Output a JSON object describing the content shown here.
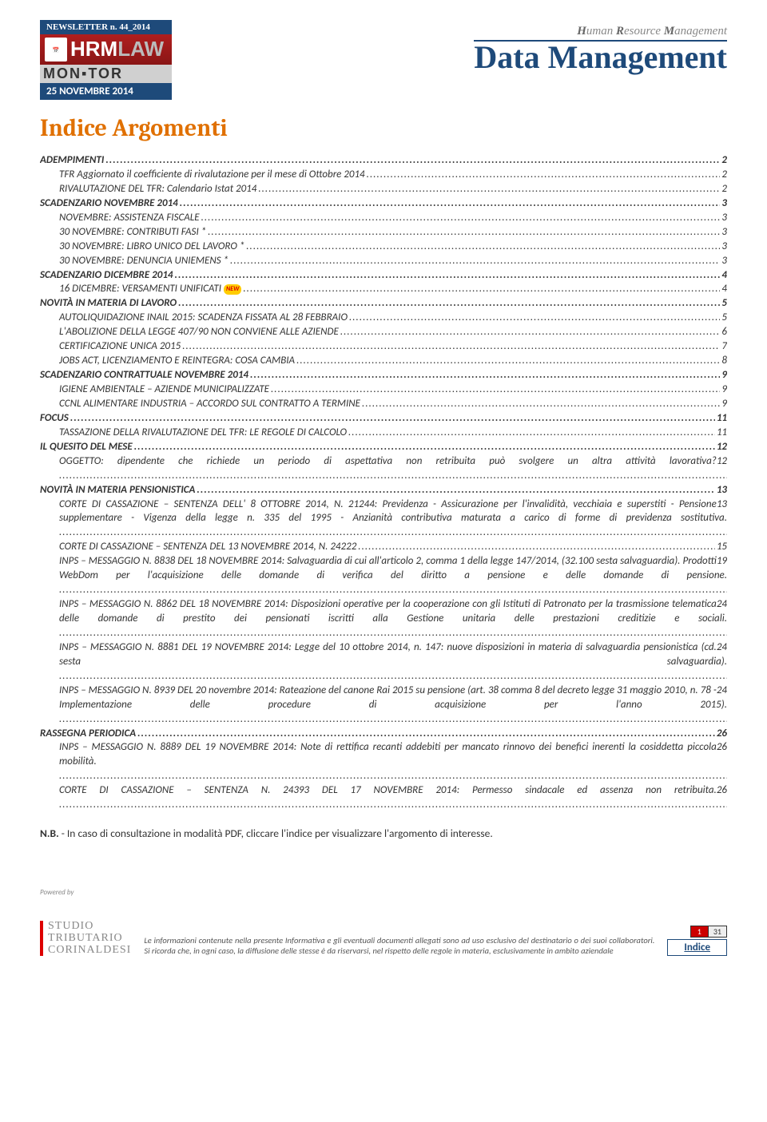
{
  "header": {
    "newsletter_label": "NEWSLETTER n. 44_2014",
    "hrm_line1_a": "HRM",
    "hrm_line1_b": "LAW",
    "monitor": "MON▪TOR",
    "date_bar": "25 NOVEMBRE 2014",
    "right_tag_html": "Human Resource Management",
    "dm_logo": "Data Management"
  },
  "title": "Indice Argomenti",
  "toc": [
    {
      "lvl": 0,
      "label": "ADEMPIMENTI",
      "page": "2"
    },
    {
      "lvl": 1,
      "label": "TFR Aggiornato il coefficiente di rivalutazione per il mese di Ottobre 2014",
      "page": "2"
    },
    {
      "lvl": 1,
      "label": "RIVALUTAZIONE DEL TFR: Calendario Istat 2014",
      "page": "2"
    },
    {
      "lvl": 0,
      "label": "SCADENZARIO NOVEMBRE 2014",
      "page": "3"
    },
    {
      "lvl": 1,
      "label": "NOVEMBRE: ASSISTENZA FISCALE",
      "page": "3"
    },
    {
      "lvl": 1,
      "label": "30 NOVEMBRE: CONTRIBUTI FASI *",
      "page": "3"
    },
    {
      "lvl": 1,
      "label": "30 NOVEMBRE: LIBRO UNICO DEL LAVORO *",
      "page": "3"
    },
    {
      "lvl": 1,
      "label": "30 NOVEMBRE: DENUNCIA UNIEMENS *",
      "page": "3"
    },
    {
      "lvl": 0,
      "label": "SCADENZARIO DICEMBRE 2014",
      "page": "4"
    },
    {
      "lvl": 1,
      "label": "16 DICEMBRE: VERSAMENTI UNIFICATI",
      "page": "4",
      "new": true
    },
    {
      "lvl": 0,
      "label": "NOVITÀ IN MATERIA DI LAVORO",
      "page": "5"
    },
    {
      "lvl": 1,
      "label": "AUTOLIQUIDAZIONE INAIL 2015: SCADENZA FISSATA AL 28 FEBBRAIO",
      "page": "5"
    },
    {
      "lvl": 1,
      "label": "L'ABOLIZIONE DELLA LEGGE 407/90 NON CONVIENE ALLE AZIENDE",
      "page": "6"
    },
    {
      "lvl": 1,
      "label": "CERTIFICAZIONE UNICA 2015",
      "page": "7"
    },
    {
      "lvl": 1,
      "label": "JOBS ACT, LICENZIAMENTO E REINTEGRA: COSA CAMBIA",
      "page": "8"
    },
    {
      "lvl": 0,
      "label": "SCADENZARIO CONTRATTUALE NOVEMBRE 2014",
      "page": "9"
    },
    {
      "lvl": 1,
      "label": "IGIENE AMBIENTALE – AZIENDE MUNICIPALIZZATE",
      "page": "9"
    },
    {
      "lvl": 1,
      "label": "CCNL ALIMENTARE INDUSTRIA – ACCORDO SUL CONTRATTO A TERMINE",
      "page": "9"
    },
    {
      "lvl": 0,
      "label": "FOCUS",
      "page": "11"
    },
    {
      "lvl": 1,
      "label": "TASSAZIONE DELLA RIVALUTAZIONE DEL TFR: LE REGOLE DI CALCOLO",
      "page": "11"
    },
    {
      "lvl": 0,
      "label": "IL QUESITO DEL MESE",
      "page": "12"
    },
    {
      "lvl": 1,
      "multi": true,
      "label": "OGGETTO: dipendente che richiede un periodo di aspettativa non retribuita può svolgere un altra attività lavorativa?",
      "page": "12"
    },
    {
      "lvl": 0,
      "label": "NOVITÀ IN MATERIA PENSIONISTICA",
      "page": "13"
    },
    {
      "lvl": 1,
      "multi": true,
      "label": "CORTE DI CASSAZIONE – SENTENZA DELL' 8 OTTOBRE 2014, N. 21244: Previdenza - Assicurazione per l'invalidità, vecchiaia e superstiti - Pensione supplementare - Vigenza della legge n. 335 del 1995 - Anzianità contributiva maturata a carico di forme di previdenza sostitutiva.",
      "page": "13"
    },
    {
      "lvl": 1,
      "label": "CORTE DI CASSAZIONE – SENTENZA DEL 13 NOVEMBRE 2014, N. 24222",
      "page": "15"
    },
    {
      "lvl": 1,
      "multi": true,
      "label": "INPS – MESSAGGIO N. 8838 DEL 18 NOVEMBRE 2014: Salvaguardia di cui all'articolo 2, comma 1 della legge 147/2014, (32.100 sesta salvaguardia). Prodotti WebDom per l'acquisizione delle domande di verifica del diritto a pensione e delle domande di pensione.",
      "page": "19"
    },
    {
      "lvl": 1,
      "multi": true,
      "label": "INPS – MESSAGGIO N. 8862 DEL 18 NOVEMBRE 2014: Disposizioni operative per la cooperazione con gli Istituti di Patronato per la trasmissione telematica delle domande di prestito dei pensionati iscritti alla Gestione unitaria delle prestazioni creditizie e sociali.",
      "page": "24"
    },
    {
      "lvl": 1,
      "multi": true,
      "label": "INPS – MESSAGGIO N. 8881 DEL 19 NOVEMBRE 2014: Legge del 10 ottobre 2014, n. 147: nuove disposizioni in materia di salvaguardia pensionistica (cd. sesta salvaguardia).",
      "page": "24"
    },
    {
      "lvl": 1,
      "multi": true,
      "label": "INPS – MESSAGGIO N. 8939 DEL 20 novembre 2014: Rateazione del canone Rai 2015 su pensione (art. 38 comma 8 del decreto legge 31 maggio 2010, n. 78 - Implementazione delle procedure di acquisizione per l'anno 2015).",
      "page": "24"
    },
    {
      "lvl": 0,
      "label": "RASSEGNA PERIODICA",
      "page": "26"
    },
    {
      "lvl": 1,
      "multi": true,
      "label": "INPS – MESSAGGIO N. 8889 DEL 19 NOVEMBRE 2014: Note di rettifica recanti addebiti per mancato rinnovo dei benefici inerenti la cosiddetta piccola mobilità.",
      "page": "26"
    },
    {
      "lvl": 1,
      "multi": true,
      "label": "CORTE DI CASSAZIONE – SENTENZA N. 24393 DEL 17 NOVEMBRE 2014: Permesso sindacale ed assenza non retribuita.",
      "page": "26"
    }
  ],
  "nb_prefix": "N.B.",
  "nb_text": " - In caso di consultazione in modalità PDF, cliccare l'indice per visualizzare l'argomento di interesse.",
  "footer": {
    "powered_by": "Powered by",
    "studio_l1": "STUDIO",
    "studio_l2": "TRIBUTARIO",
    "studio_l3": "CORINALDESI",
    "disclaimer": "Le informazioni contenute nella presente Informativa e gli eventuali documenti allegati sono ad uso esclusivo del destinatario o dei suoi collaboratori. Si ricorda che, in ogni caso, la diffusione delle stesse è da riservarsi, nel rispetto delle regole in materia, esclusivamente in ambito aziendale",
    "page_cur": "1",
    "page_tot": "31",
    "indice": "Indice"
  },
  "colors": {
    "accent_orange": "#e07000",
    "brand_blue": "#1e4a7a",
    "brand_red": "#c00"
  }
}
